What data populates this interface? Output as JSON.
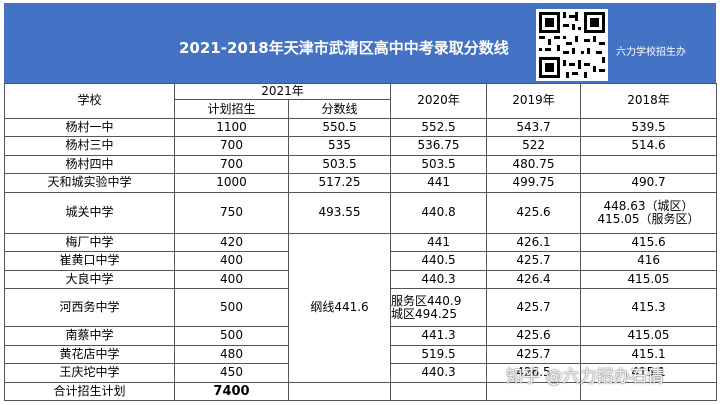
{
  "header": {
    "title": "2021-2018年天津市武清区高中中考录取分数线",
    "brand": "六力学校招生办"
  },
  "table": {
    "col_school": "学校",
    "col_2021": "2021年",
    "col_plan": "计划招生",
    "col_score": "分数线",
    "col_2020": "2020年",
    "col_2019": "2019年",
    "col_2018": "2018年",
    "rows": [
      {
        "school": "杨村一中",
        "plan": "1100",
        "score": "550.5",
        "y2020": "552.5",
        "y2019": "543.7",
        "y2018": "539.5"
      },
      {
        "school": "杨村三中",
        "plan": "700",
        "score": "535",
        "y2020": "536.75",
        "y2019": "522",
        "y2018": "514.6"
      },
      {
        "school": "杨村四中",
        "plan": "700",
        "score": "503.5",
        "y2020": "503.5",
        "y2019": "480.75",
        "y2018": ""
      },
      {
        "school": "天和城实验中学",
        "plan": "1000",
        "score": "517.25",
        "y2020": "441",
        "y2019": "499.75",
        "y2018": "490.7"
      },
      {
        "school": "城关中学",
        "plan": "750",
        "score": "493.55",
        "y2020": "440.8",
        "y2019": "425.6",
        "y2018_line1": "448.63（城区）",
        "y2018_line2": "415.05（服务区）"
      },
      {
        "school": "梅厂中学",
        "plan": "420",
        "y2020": "441",
        "y2019": "426.1",
        "y2018": "415.6"
      },
      {
        "school": "崔黄口中学",
        "plan": "400",
        "y2020": "440.5",
        "y2019": "425.7",
        "y2018": "416"
      },
      {
        "school": "大良中学",
        "plan": "400",
        "y2020": "440.3",
        "y2019": "426.4",
        "y2018": "415.05"
      },
      {
        "school": "河西务中学",
        "plan": "500",
        "y2020_line1": "服务区440.9",
        "y2020_line2": "城区494.25",
        "y2019": "425.7",
        "y2018": "415.3"
      },
      {
        "school": "南蔡中学",
        "plan": "500",
        "y2020": "441.3",
        "y2019": "425.6",
        "y2018": "415.05"
      },
      {
        "school": "黄花店中学",
        "plan": "480",
        "y2020": "519.5",
        "y2019": "425.7",
        "y2018": "415.1"
      },
      {
        "school": "王庆坨中学",
        "plan": "450",
        "y2020": "440.3",
        "y2019": "426.5",
        "y2018": "415.1"
      }
    ],
    "merged_score": "纲线441.6",
    "total_label": "合计招生计划",
    "total_value": "7400"
  },
  "watermark": "知乎 @六力招办石倩"
}
